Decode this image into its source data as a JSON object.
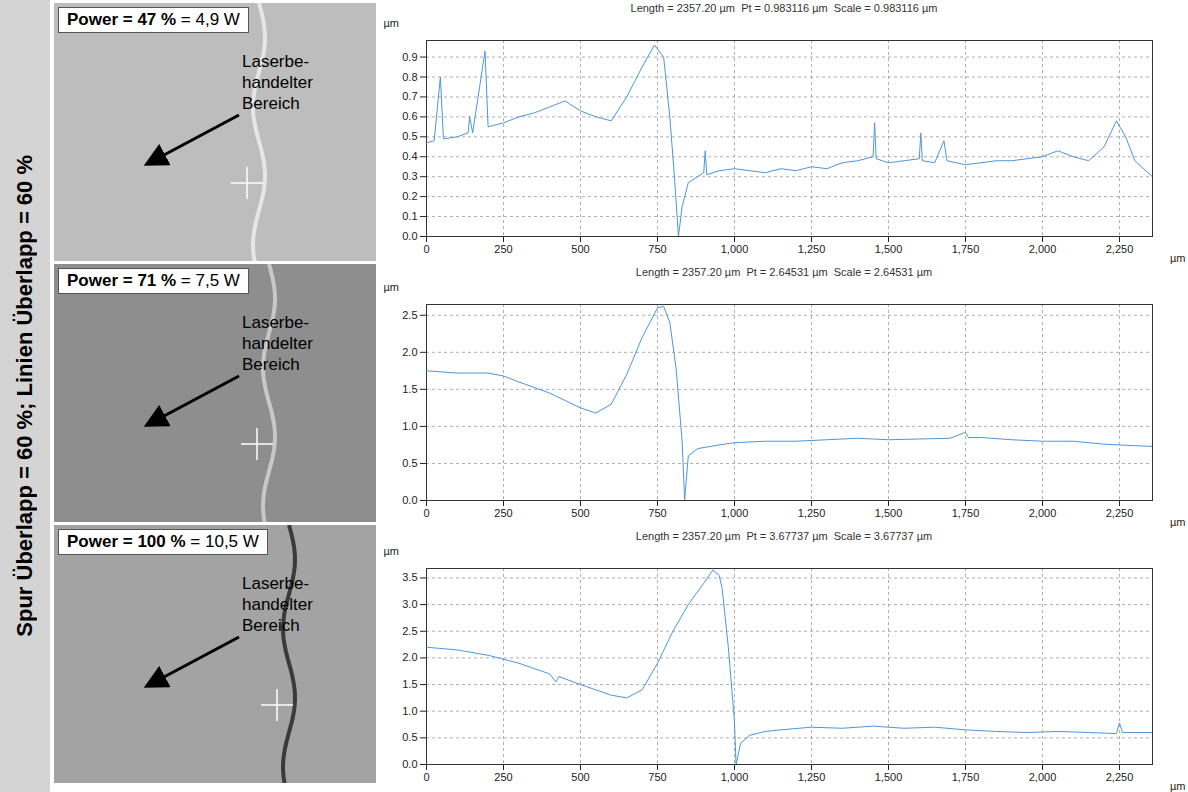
{
  "side_label": "Spur Überlapp = 60 %; Linien Überlapp = 60 %",
  "image_panels": [
    {
      "power_label": "Power = 47 %",
      "power_watts": "= 4,9 W",
      "area_label": [
        "Laserbe-",
        "handelter",
        "Bereich"
      ]
    },
    {
      "power_label": "Power = 71 %",
      "power_watts": "= 7,5 W",
      "area_label": [
        "Laserbe-",
        "handelter",
        "Bereich"
      ]
    },
    {
      "power_label": "Power = 100 %",
      "power_watts": "= 10,5 W",
      "area_label": [
        "Laserbe-",
        "handelter",
        "Bereich"
      ]
    }
  ],
  "chart_data": [
    {
      "type": "line",
      "title": "Length = 2357.20 µm  Pt = 0.983116 µm  Scale = 0.983116 µm",
      "x_label": "µm",
      "y_label": "µm",
      "color": "#4f95dd",
      "grid": true,
      "xlim": [
        0,
        2357.2
      ],
      "ylim": [
        0,
        0.983116
      ],
      "xticks": [
        0,
        250,
        500,
        750,
        1000,
        1250,
        1500,
        1750,
        2000,
        2250
      ],
      "yticks": [
        0,
        0.1,
        0.2,
        0.3,
        0.4,
        0.5,
        0.6,
        0.7,
        0.8,
        0.9
      ],
      "x": [
        0,
        25,
        45,
        55,
        100,
        135,
        140,
        150,
        190,
        200,
        250,
        300,
        350,
        400,
        450,
        500,
        550,
        600,
        650,
        700,
        740,
        770,
        790,
        805,
        818,
        830,
        850,
        900,
        905,
        910,
        950,
        1000,
        1050,
        1100,
        1150,
        1200,
        1250,
        1300,
        1350,
        1400,
        1450,
        1455,
        1460,
        1500,
        1550,
        1600,
        1605,
        1610,
        1650,
        1680,
        1690,
        1750,
        1800,
        1850,
        1900,
        1950,
        2000,
        2050,
        2100,
        2150,
        2200,
        2240,
        2270,
        2300,
        2357
      ],
      "values": [
        0.47,
        0.48,
        0.8,
        0.49,
        0.5,
        0.52,
        0.6,
        0.52,
        0.93,
        0.55,
        0.57,
        0.6,
        0.62,
        0.65,
        0.68,
        0.63,
        0.6,
        0.58,
        0.7,
        0.85,
        0.96,
        0.9,
        0.6,
        0.3,
        0.0,
        0.15,
        0.27,
        0.32,
        0.43,
        0.31,
        0.33,
        0.34,
        0.33,
        0.32,
        0.34,
        0.33,
        0.35,
        0.34,
        0.37,
        0.38,
        0.4,
        0.57,
        0.39,
        0.37,
        0.38,
        0.39,
        0.52,
        0.38,
        0.37,
        0.48,
        0.38,
        0.36,
        0.37,
        0.38,
        0.38,
        0.39,
        0.4,
        0.43,
        0.4,
        0.38,
        0.45,
        0.58,
        0.5,
        0.38,
        0.3
      ]
    },
    {
      "type": "line",
      "title": "Length = 2357.20 µm  Pt = 2.64531 µm  Scale = 2.64531 µm",
      "x_label": "µm",
      "y_label": "µm",
      "color": "#4f95dd",
      "grid": true,
      "xlim": [
        0,
        2357.2
      ],
      "ylim": [
        0,
        2.64531
      ],
      "xticks": [
        0,
        250,
        500,
        750,
        1000,
        1250,
        1500,
        1750,
        2000,
        2250
      ],
      "yticks": [
        0,
        0.5,
        1,
        1.5,
        2,
        2.5
      ],
      "x": [
        0,
        100,
        200,
        250,
        300,
        400,
        500,
        550,
        600,
        650,
        700,
        750,
        770,
        790,
        810,
        830,
        838,
        850,
        880,
        950,
        1000,
        1100,
        1200,
        1300,
        1400,
        1500,
        1600,
        1700,
        1750,
        1760,
        1800,
        1900,
        2000,
        2100,
        2200,
        2300,
        2357
      ],
      "values": [
        1.75,
        1.72,
        1.72,
        1.68,
        1.6,
        1.45,
        1.25,
        1.18,
        1.3,
        1.7,
        2.2,
        2.6,
        2.62,
        2.4,
        1.8,
        0.8,
        0.0,
        0.6,
        0.7,
        0.75,
        0.78,
        0.8,
        0.8,
        0.82,
        0.84,
        0.82,
        0.83,
        0.84,
        0.92,
        0.85,
        0.85,
        0.82,
        0.8,
        0.8,
        0.76,
        0.74,
        0.73
      ]
    },
    {
      "type": "line",
      "title": "Length = 2357.20 µm  Pt = 3.67737 µm  Scale = 3.67737 µm",
      "x_label": "µm",
      "y_label": "µm",
      "color": "#4f95dd",
      "grid": true,
      "xlim": [
        0,
        2357.2
      ],
      "ylim": [
        0,
        3.67737
      ],
      "xticks": [
        0,
        250,
        500,
        750,
        1000,
        1250,
        1500,
        1750,
        2000,
        2250
      ],
      "yticks": [
        0,
        0.5,
        1,
        1.5,
        2,
        2.5,
        3,
        3.5
      ],
      "x": [
        0,
        100,
        200,
        300,
        400,
        420,
        430,
        500,
        600,
        650,
        700,
        750,
        800,
        850,
        900,
        930,
        950,
        960,
        980,
        1000,
        1005,
        1020,
        1050,
        1100,
        1150,
        1250,
        1350,
        1450,
        1550,
        1650,
        1750,
        1850,
        1950,
        2050,
        2150,
        2240,
        2250,
        2260,
        2357
      ],
      "values": [
        2.2,
        2.15,
        2.05,
        1.9,
        1.7,
        1.55,
        1.65,
        1.5,
        1.3,
        1.25,
        1.4,
        1.9,
        2.5,
        3.0,
        3.4,
        3.65,
        3.55,
        3.3,
        2.2,
        0.8,
        0.0,
        0.4,
        0.55,
        0.62,
        0.65,
        0.7,
        0.68,
        0.72,
        0.68,
        0.7,
        0.65,
        0.62,
        0.6,
        0.62,
        0.6,
        0.58,
        0.78,
        0.6,
        0.6
      ]
    }
  ]
}
